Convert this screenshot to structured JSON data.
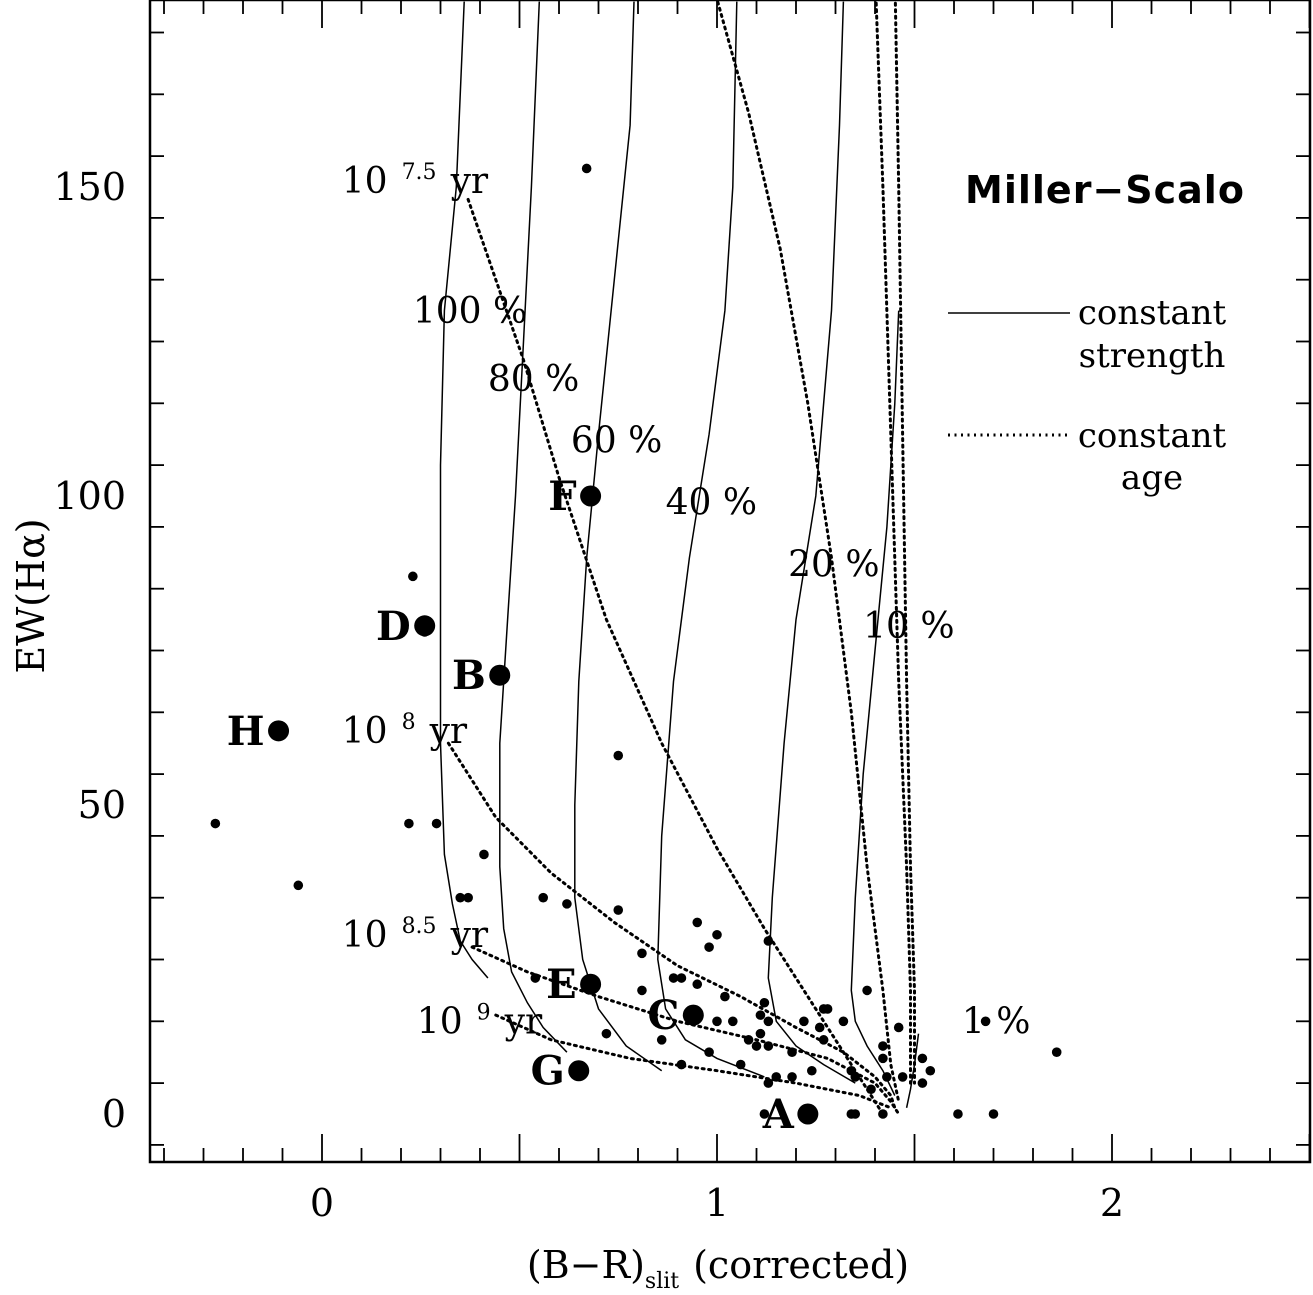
{
  "chart_data": {
    "type": "scatter",
    "title": "Miller−Scalo",
    "xlabel": "(B−R)",
    "xlabel_sub": "slit",
    "xlabel_suffix": "(corrected)",
    "ylabel": "EW(Hα)",
    "xlim": [
      -0.43,
      2.5
    ],
    "ylim": [
      -8,
      180
    ],
    "x_ticks": [
      0,
      1,
      2
    ],
    "x_tick_labels": [
      "0",
      "1",
      "2"
    ],
    "y_ticks": [
      0,
      50,
      100,
      150
    ],
    "y_tick_labels": [
      "0",
      "50",
      "100",
      "150"
    ],
    "legend": {
      "position": "top-right",
      "entries": [
        {
          "style": "solid",
          "line1": "constant",
          "line2": "strength"
        },
        {
          "style": "dotted",
          "line1": "constant",
          "line2": "age"
        }
      ]
    },
    "strength_tracks": [
      {
        "label": "100 %",
        "points": [
          [
            0.36,
            180
          ],
          [
            0.34,
            150
          ],
          [
            0.31,
            130
          ],
          [
            0.3,
            105
          ],
          [
            0.3,
            60
          ],
          [
            0.31,
            42
          ],
          [
            0.33,
            34
          ],
          [
            0.35,
            28
          ],
          [
            0.38,
            25
          ],
          [
            0.42,
            22
          ]
        ]
      },
      {
        "label": "80 %",
        "points": [
          [
            0.55,
            180
          ],
          [
            0.53,
            150
          ],
          [
            0.51,
            125
          ],
          [
            0.49,
            100
          ],
          [
            0.47,
            80
          ],
          [
            0.45,
            60
          ],
          [
            0.45,
            40
          ],
          [
            0.46,
            30
          ],
          [
            0.48,
            23
          ],
          [
            0.52,
            18
          ],
          [
            0.56,
            14
          ],
          [
            0.62,
            10
          ]
        ]
      },
      {
        "label": "60 %",
        "points": [
          [
            0.79,
            180
          ],
          [
            0.78,
            160
          ],
          [
            0.74,
            135
          ],
          [
            0.7,
            110
          ],
          [
            0.67,
            90
          ],
          [
            0.65,
            70
          ],
          [
            0.64,
            50
          ],
          [
            0.64,
            35
          ],
          [
            0.66,
            25
          ],
          [
            0.7,
            17
          ],
          [
            0.77,
            11
          ],
          [
            0.86,
            7
          ]
        ]
      },
      {
        "label": "40 %",
        "points": [
          [
            1.05,
            180
          ],
          [
            1.04,
            150
          ],
          [
            1.02,
            130
          ],
          [
            0.98,
            110
          ],
          [
            0.93,
            90
          ],
          [
            0.89,
            70
          ],
          [
            0.86,
            45
          ],
          [
            0.85,
            25
          ],
          [
            0.87,
            17
          ],
          [
            0.92,
            12
          ],
          [
            1.0,
            9
          ],
          [
            1.12,
            6
          ]
        ]
      },
      {
        "label": "20 %",
        "points": [
          [
            1.32,
            180
          ],
          [
            1.31,
            160
          ],
          [
            1.29,
            130
          ],
          [
            1.25,
            100
          ],
          [
            1.2,
            80
          ],
          [
            1.17,
            60
          ],
          [
            1.14,
            35
          ],
          [
            1.13,
            22
          ],
          [
            1.15,
            15
          ],
          [
            1.2,
            11
          ],
          [
            1.27,
            8
          ],
          [
            1.35,
            5
          ]
        ]
      },
      {
        "label": "10 %",
        "points": [
          [
            1.46,
            130
          ],
          [
            1.45,
            115
          ],
          [
            1.43,
            95
          ],
          [
            1.4,
            75
          ],
          [
            1.37,
            55
          ],
          [
            1.35,
            35
          ],
          [
            1.34,
            20
          ],
          [
            1.35,
            15
          ],
          [
            1.38,
            11
          ],
          [
            1.42,
            7
          ],
          [
            1.45,
            3
          ]
        ]
      },
      {
        "label": "1 %",
        "points": [
          [
            1.51,
            13
          ],
          [
            1.5,
            8
          ],
          [
            1.49,
            4
          ],
          [
            1.48,
            1
          ]
        ]
      }
    ],
    "age_tracks": [
      {
        "label": "10^7.5 yr",
        "points": [
          [
            0.37,
            148
          ],
          [
            0.44,
            135
          ],
          [
            0.51,
            122
          ],
          [
            0.6,
            103
          ],
          [
            0.72,
            80
          ],
          [
            0.86,
            60
          ],
          [
            1.0,
            43
          ],
          [
            1.12,
            30
          ],
          [
            1.22,
            20
          ],
          [
            1.3,
            12
          ],
          [
            1.36,
            6
          ],
          [
            1.4,
            2
          ],
          [
            1.42,
            0
          ]
        ]
      },
      {
        "label": "10^8 yr",
        "points": [
          [
            0.32,
            60
          ],
          [
            0.44,
            48
          ],
          [
            0.58,
            39
          ],
          [
            0.74,
            31
          ],
          [
            0.9,
            24
          ],
          [
            1.06,
            19
          ],
          [
            1.2,
            14
          ],
          [
            1.32,
            10
          ],
          [
            1.4,
            6
          ],
          [
            1.44,
            3
          ],
          [
            1.45,
            1
          ]
        ]
      },
      {
        "label": "10^8.5 yr",
        "points": [
          [
            0.38,
            27
          ],
          [
            0.52,
            23
          ],
          [
            0.7,
            19
          ],
          [
            0.9,
            15
          ],
          [
            1.1,
            12
          ],
          [
            1.28,
            9
          ],
          [
            1.4,
            5
          ],
          [
            1.44,
            2
          ],
          [
            1.46,
            0
          ]
        ]
      },
      {
        "label": "10^9 yr",
        "points": [
          [
            0.44,
            16
          ],
          [
            0.58,
            12
          ],
          [
            0.78,
            9
          ],
          [
            1.0,
            7
          ],
          [
            1.2,
            5
          ],
          [
            1.36,
            3
          ],
          [
            1.44,
            1
          ]
        ]
      },
      {
        "label": "",
        "points": [
          [
            0.98,
            185
          ],
          [
            1.08,
            162
          ],
          [
            1.16,
            140
          ],
          [
            1.23,
            115
          ],
          [
            1.29,
            90
          ],
          [
            1.34,
            65
          ],
          [
            1.38,
            40
          ],
          [
            1.42,
            20
          ],
          [
            1.44,
            8
          ],
          [
            1.46,
            2
          ]
        ]
      },
      {
        "label": "",
        "points": [
          [
            1.4,
            185
          ],
          [
            1.42,
            150
          ],
          [
            1.44,
            110
          ],
          [
            1.46,
            70
          ],
          [
            1.48,
            40
          ],
          [
            1.49,
            20
          ],
          [
            1.49,
            5
          ]
        ]
      },
      {
        "label": "",
        "points": [
          [
            1.45,
            185
          ],
          [
            1.46,
            150
          ],
          [
            1.47,
            110
          ],
          [
            1.48,
            70
          ],
          [
            1.49,
            40
          ],
          [
            1.5,
            20
          ],
          [
            1.5,
            5
          ]
        ]
      }
    ],
    "track_labels": [
      {
        "text": "100 %",
        "x": 0.23,
        "y": 128
      },
      {
        "text": "80 %",
        "x": 0.42,
        "y": 117
      },
      {
        "text": "60 %",
        "x": 0.63,
        "y": 107
      },
      {
        "text": "40 %",
        "x": 0.87,
        "y": 97
      },
      {
        "text": "20 %",
        "x": 1.18,
        "y": 87
      },
      {
        "text": "10 %",
        "x": 1.37,
        "y": 77
      },
      {
        "text": "1 %",
        "x": 1.62,
        "y": 13
      }
    ],
    "age_labels": [
      {
        "base": "10",
        "exp": "7.5",
        "unit": "yr",
        "x": 0.05,
        "y": 149
      },
      {
        "base": "10",
        "exp": "8",
        "unit": "yr",
        "x": 0.05,
        "y": 60
      },
      {
        "base": "10",
        "exp": "8.5",
        "unit": "yr",
        "x": 0.05,
        "y": 27
      },
      {
        "base": "10",
        "exp": "9",
        "unit": "yr",
        "x": 0.24,
        "y": 13
      }
    ],
    "labeled_galaxies": [
      {
        "name": "A",
        "x": 1.23,
        "y": 0
      },
      {
        "name": "B",
        "x": 0.45,
        "y": 71
      },
      {
        "name": "C",
        "x": 0.94,
        "y": 16
      },
      {
        "name": "D",
        "x": 0.26,
        "y": 79
      },
      {
        "name": "E",
        "x": 0.68,
        "y": 21
      },
      {
        "name": "F",
        "x": 0.68,
        "y": 100
      },
      {
        "name": "G",
        "x": 0.65,
        "y": 7
      },
      {
        "name": "H",
        "x": -0.11,
        "y": 62
      }
    ],
    "points": [
      [
        0.67,
        153
      ],
      [
        0.23,
        87
      ],
      [
        0.26,
        78
      ],
      [
        0.75,
        58
      ],
      [
        -0.27,
        47
      ],
      [
        0.22,
        47
      ],
      [
        0.29,
        47
      ],
      [
        0.41,
        42
      ],
      [
        -0.06,
        37
      ],
      [
        0.35,
        35
      ],
      [
        0.37,
        35
      ],
      [
        0.56,
        35
      ],
      [
        0.62,
        34
      ],
      [
        0.75,
        33
      ],
      [
        0.95,
        31
      ],
      [
        1.0,
        29
      ],
      [
        0.98,
        27
      ],
      [
        0.81,
        26
      ],
      [
        1.13,
        28
      ],
      [
        0.54,
        22
      ],
      [
        0.89,
        22
      ],
      [
        0.91,
        22
      ],
      [
        0.95,
        21
      ],
      [
        0.81,
        20
      ],
      [
        1.38,
        20
      ],
      [
        1.02,
        19
      ],
      [
        1.12,
        18
      ],
      [
        1.28,
        17
      ],
      [
        1.27,
        17
      ],
      [
        1.0,
        15
      ],
      [
        1.04,
        15
      ],
      [
        1.11,
        16
      ],
      [
        1.13,
        15
      ],
      [
        1.22,
        15
      ],
      [
        1.26,
        14
      ],
      [
        1.32,
        15
      ],
      [
        1.68,
        15
      ],
      [
        1.46,
        14
      ],
      [
        1.11,
        13
      ],
      [
        1.08,
        12
      ],
      [
        0.72,
        13
      ],
      [
        0.86,
        12
      ],
      [
        1.27,
        12
      ],
      [
        1.1,
        11
      ],
      [
        1.13,
        11
      ],
      [
        1.19,
        10
      ],
      [
        1.42,
        11
      ],
      [
        1.86,
        10
      ],
      [
        0.98,
        10
      ],
      [
        1.06,
        8
      ],
      [
        1.42,
        9
      ],
      [
        1.52,
        9
      ],
      [
        1.34,
        7
      ],
      [
        1.24,
        7
      ],
      [
        1.19,
        6
      ],
      [
        1.15,
        6
      ],
      [
        1.35,
        6
      ],
      [
        1.43,
        6
      ],
      [
        1.47,
        6
      ],
      [
        1.54,
        7
      ],
      [
        1.13,
        5
      ],
      [
        1.39,
        4
      ],
      [
        1.52,
        5
      ],
      [
        0.91,
        8
      ],
      [
        1.12,
        0
      ],
      [
        1.34,
        0
      ],
      [
        1.35,
        0
      ],
      [
        1.42,
        0
      ],
      [
        1.61,
        0
      ],
      [
        1.7,
        0
      ]
    ]
  }
}
